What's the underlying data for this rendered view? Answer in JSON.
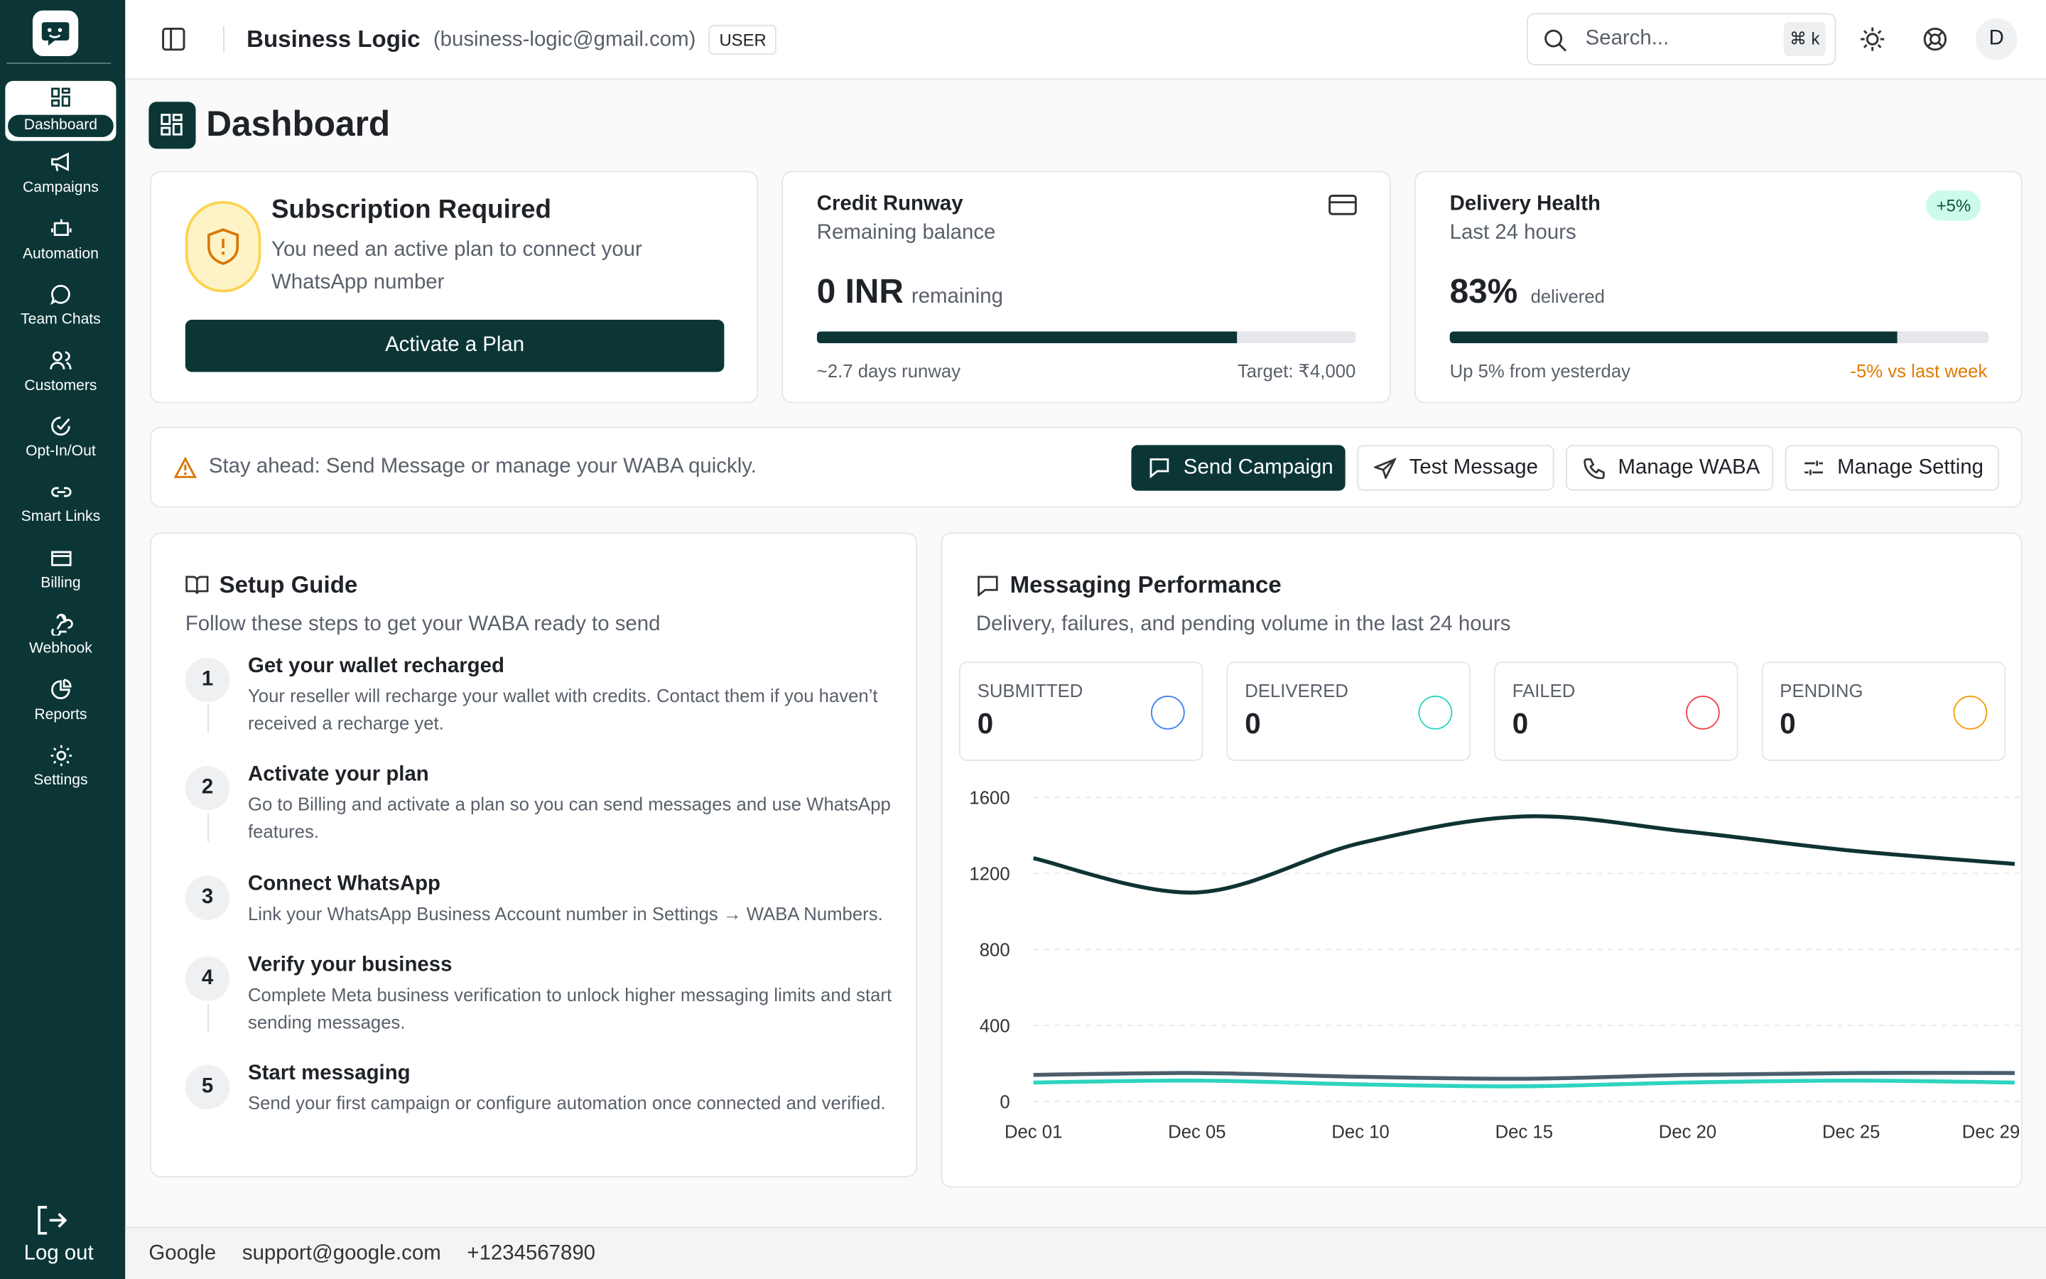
{
  "sidebar": {
    "nav": [
      "Dashboard",
      "Campaigns",
      "Automation",
      "Team Chats",
      "Customers",
      "Opt-In/Out",
      "Smart Links",
      "Billing",
      "Webhook",
      "Reports",
      "Settings"
    ],
    "logout": "Log out"
  },
  "header": {
    "title": "Business Logic",
    "email": "(business-logic@gmail.com)",
    "role": "USER",
    "search": "Search...",
    "shortcut": "⌘ k",
    "avatar": "D"
  },
  "page_title": "Dashboard",
  "subscription": {
    "title": "Subscription Required",
    "text": "You need an active plan to connect your WhatsApp number",
    "button": "Activate a Plan"
  },
  "credit": {
    "title": "Credit Runway",
    "subtitle": "Remaining balance",
    "amount": "0 INR",
    "amount_note": "remaining",
    "progress": 78,
    "runway": "~2.7 days runway",
    "target": "Target: ₹4,000"
  },
  "health": {
    "title": "Delivery Health",
    "subtitle": "Last 24 hours",
    "badge": "+5%",
    "rate": 83,
    "rate_label": "83%",
    "note": "delivered",
    "left": "Up 5% from yesterday",
    "right": "-5% vs last week"
  },
  "quick": {
    "text": "Stay ahead: Send Message or manage your WABA quickly.",
    "buttons": [
      "Send Campaign",
      "Test Message",
      "Manage WABA",
      "Manage Setting"
    ]
  },
  "setup": {
    "title": "Setup Guide",
    "subtitle": "Follow these steps to get your WABA ready to send",
    "steps": [
      {
        "number": "1",
        "title": "Get your wallet recharged",
        "text": "Your reseller will recharge your wallet with credits. Contact them if you haven’t received a recharge yet."
      },
      {
        "number": "2",
        "title": "Activate your plan",
        "text": "Go to Billing and activate a plan so you can send messages and use WhatsApp features."
      },
      {
        "number": "3",
        "title": "Connect WhatsApp",
        "text": "Link your WhatsApp Business Account number in Settings → WABA Numbers."
      },
      {
        "number": "4",
        "title": "Verify your business",
        "text": "Complete Meta business verification to unlock higher messaging limits and start sending messages."
      },
      {
        "number": "5",
        "title": "Start messaging",
        "text": "Send your first campaign or configure automation once connected and verified."
      }
    ]
  },
  "performance": {
    "title": "Messaging Performance",
    "subtitle": "Delivery, failures, and pending volume in the last 24 hours",
    "stats": [
      {
        "label": "SUBMITTED",
        "value": 0,
        "color": "#3b82f6"
      },
      {
        "label": "DELIVERED",
        "value": 0,
        "color": "#2dd4bf"
      },
      {
        "label": "FAILED",
        "value": 0,
        "color": "#ef4444"
      },
      {
        "label": "PENDING",
        "value": 0,
        "color": "#f59e0b"
      }
    ]
  },
  "chart_data": {
    "type": "line",
    "categories": [
      "Dec 01",
      "Dec 05",
      "Dec 10",
      "Dec 15",
      "Dec 20",
      "Dec 25",
      "Dec 29"
    ],
    "series": [
      {
        "color": "#0f3333",
        "values": [
          1280,
          1100,
          1360,
          1500,
          1420,
          1320,
          1250
        ]
      },
      {
        "color": "#4b5d6b",
        "values": [
          140,
          150,
          130,
          120,
          140,
          150,
          150
        ]
      },
      {
        "color": "#2dd4bf",
        "values": [
          100,
          110,
          90,
          80,
          100,
          110,
          100
        ]
      }
    ],
    "ylim": [
      0,
      1600
    ],
    "yticks": [
      0,
      400,
      800,
      1200,
      1600
    ],
    "grid": true
  },
  "footer": [
    "Google",
    "support@google.com",
    "+1234567890"
  ]
}
